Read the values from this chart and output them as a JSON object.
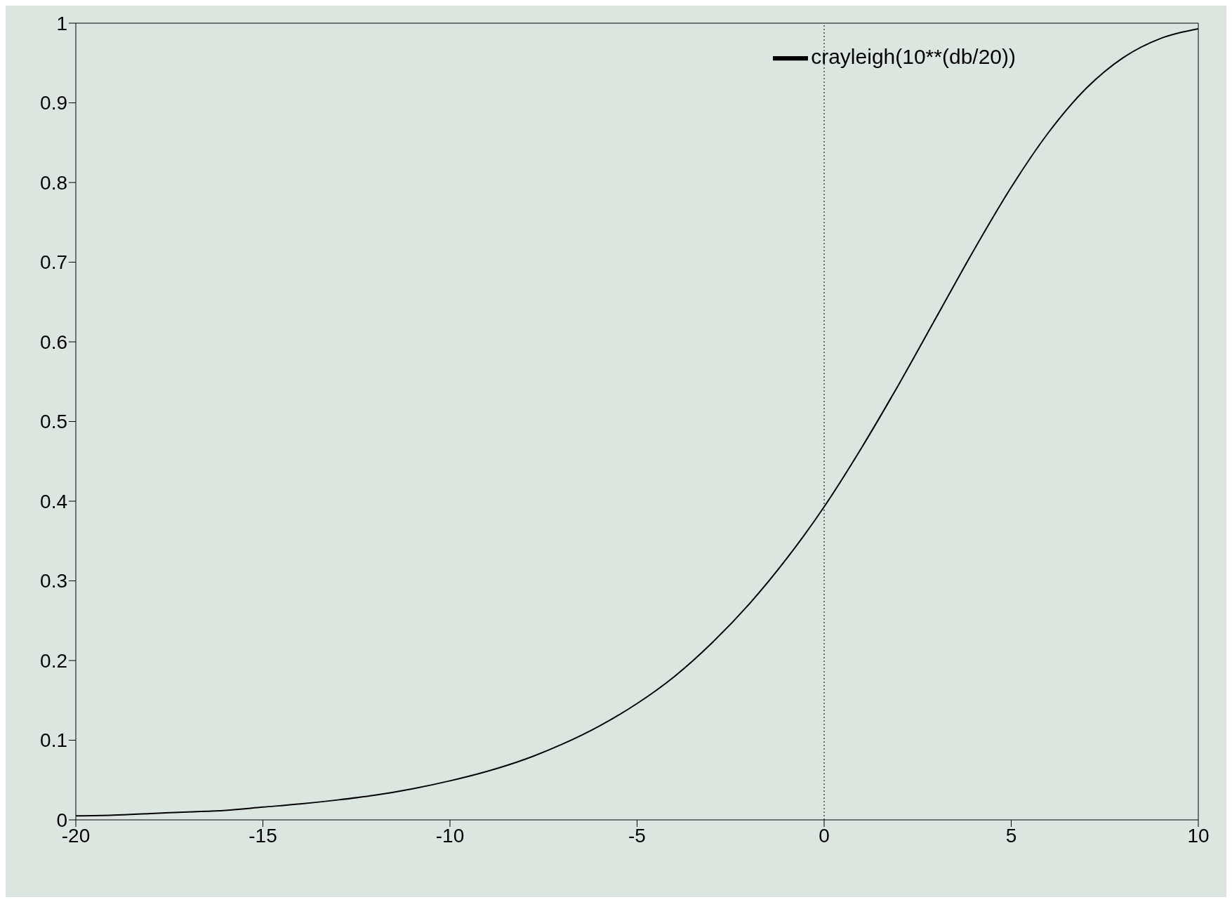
{
  "chart_data": {
    "type": "line",
    "x": [
      -20,
      -19,
      -18,
      -17,
      -16,
      -15,
      -14,
      -13,
      -12,
      -11,
      -10,
      -9,
      -8,
      -7,
      -6,
      -5,
      -4,
      -3,
      -2,
      -1,
      0,
      1,
      2,
      3,
      4,
      5,
      6,
      7,
      8,
      9,
      10
    ],
    "series": [
      {
        "name": "crayleigh(10**(db/20))",
        "color": "#000000",
        "values": [
          0.005,
          0.006,
          0.008,
          0.01,
          0.012,
          0.016,
          0.02,
          0.025,
          0.031,
          0.039,
          0.049,
          0.061,
          0.076,
          0.095,
          0.118,
          0.146,
          0.18,
          0.222,
          0.271,
          0.328,
          0.393,
          0.467,
          0.547,
          0.631,
          0.715,
          0.794,
          0.863,
          0.918,
          0.957,
          0.981,
          0.993
        ]
      }
    ],
    "xlim": [
      -20,
      10
    ],
    "xticks": [
      -20,
      -15,
      -10,
      -5,
      0,
      5,
      10
    ],
    "ylim": [
      0,
      1
    ],
    "yticks": [
      0,
      {
        "value": 0.1,
        "label": "0.1"
      },
      {
        "value": 0.2,
        "label": "0.2"
      },
      {
        "value": 0.3,
        "label": "0.3"
      },
      {
        "value": 0.4,
        "label": "0.4"
      },
      {
        "value": 0.5,
        "label": "0.5"
      },
      {
        "value": 0.6,
        "label": "0.6"
      },
      {
        "value": 0.7,
        "label": "0.7"
      },
      {
        "value": 0.8,
        "label": "0.8"
      },
      {
        "value": 0.9,
        "label": "0.9"
      },
      1
    ],
    "ref_lines": [
      {
        "axis": "x",
        "value": 0,
        "color": "#000000",
        "line_style": "dotted"
      }
    ],
    "legend": "top right",
    "marker": "none",
    "line_style": "solid",
    "grid": false
  }
}
